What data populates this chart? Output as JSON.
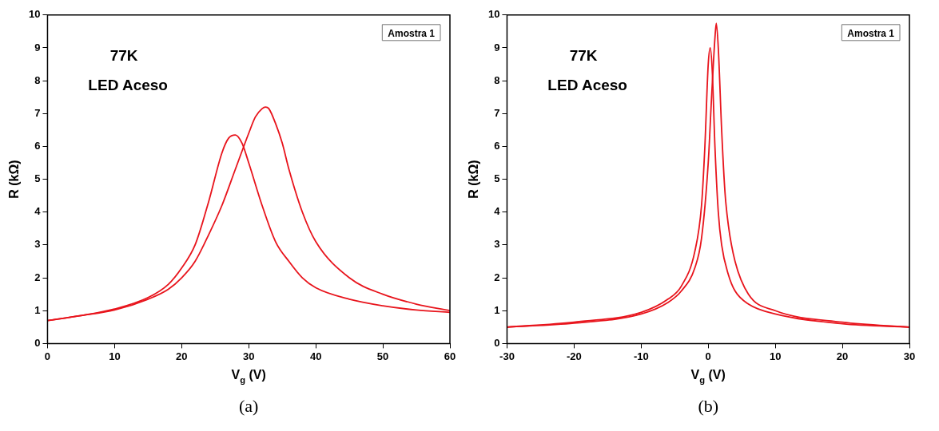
{
  "chart_data": [
    {
      "type": "line",
      "xlabel": "V$_{g}$ (V)",
      "ylabel": "R (kΩ)",
      "xlim": [
        0,
        60
      ],
      "xticks": [
        0,
        10,
        20,
        30,
        40,
        50,
        60
      ],
      "ylim": [
        0,
        10
      ],
      "yticks": [
        0,
        1,
        2,
        3,
        4,
        5,
        6,
        7,
        8,
        9,
        10
      ],
      "grid": false,
      "legend": false,
      "marker": "none",
      "line_style": "solid",
      "annotations": [
        "77K",
        "LED Aceso",
        "Amostra 1",
        "(a)"
      ],
      "series": [
        {
          "color": "#e8141c",
          "x": [
            0,
            5,
            10,
            15,
            18,
            20,
            22,
            24,
            26,
            27,
            28,
            29,
            30,
            32,
            34,
            36,
            38,
            40,
            45,
            50,
            55,
            60
          ],
          "values": [
            0.7,
            0.85,
            1.05,
            1.4,
            1.8,
            2.3,
            3.0,
            4.3,
            5.8,
            6.25,
            6.35,
            6.1,
            5.5,
            4.2,
            3.1,
            2.5,
            2.0,
            1.7,
            1.35,
            1.15,
            1.02,
            0.95
          ]
        },
        {
          "color": "#e8141c",
          "x": [
            0,
            5,
            10,
            15,
            18,
            20,
            22,
            24,
            26,
            28,
            30,
            31,
            32,
            32.5,
            33,
            34,
            35,
            36,
            38,
            40,
            45,
            50,
            55,
            60
          ],
          "values": [
            0.7,
            0.85,
            1.02,
            1.35,
            1.65,
            2.0,
            2.5,
            3.3,
            4.2,
            5.3,
            6.4,
            6.9,
            7.15,
            7.2,
            7.15,
            6.7,
            6.1,
            5.3,
            4.0,
            3.1,
            2.0,
            1.5,
            1.2,
            1.0
          ]
        }
      ]
    },
    {
      "type": "line",
      "xlabel": "V$_{g}$ (V)",
      "ylabel": "R (kΩ)",
      "xlim": [
        -30,
        30
      ],
      "xticks": [
        -30,
        -20,
        -10,
        0,
        10,
        20,
        30
      ],
      "ylim": [
        0,
        10
      ],
      "yticks": [
        0,
        1,
        2,
        3,
        4,
        5,
        6,
        7,
        8,
        9,
        10
      ],
      "grid": false,
      "legend": false,
      "marker": "none",
      "line_style": "solid",
      "annotations": [
        "77K",
        "LED Aceso",
        "Amostra 1",
        "(b)"
      ],
      "series": [
        {
          "color": "#e8141c",
          "x": [
            -30,
            -20,
            -10,
            -6,
            -4,
            -2,
            -1,
            -0.5,
            0,
            0.3,
            0.6,
            1,
            1.5,
            2,
            3,
            4,
            6,
            10,
            20,
            30
          ],
          "values": [
            0.5,
            0.65,
            0.95,
            1.35,
            1.75,
            2.8,
            4.2,
            6.0,
            8.5,
            9.0,
            8.3,
            6.0,
            4.0,
            3.0,
            2.1,
            1.6,
            1.2,
            0.9,
            0.6,
            0.5
          ]
        },
        {
          "color": "#e8141c",
          "x": [
            -30,
            -20,
            -10,
            -6,
            -4,
            -2,
            -1,
            0,
            0.5,
            1,
            1.2,
            1.5,
            2,
            2.5,
            3,
            4,
            6,
            10,
            20,
            30
          ],
          "values": [
            0.5,
            0.62,
            0.9,
            1.25,
            1.6,
            2.3,
            3.2,
            5.5,
            7.5,
            9.3,
            9.75,
            9.0,
            6.5,
            4.6,
            3.6,
            2.5,
            1.5,
            1.0,
            0.65,
            0.5
          ]
        }
      ]
    }
  ]
}
